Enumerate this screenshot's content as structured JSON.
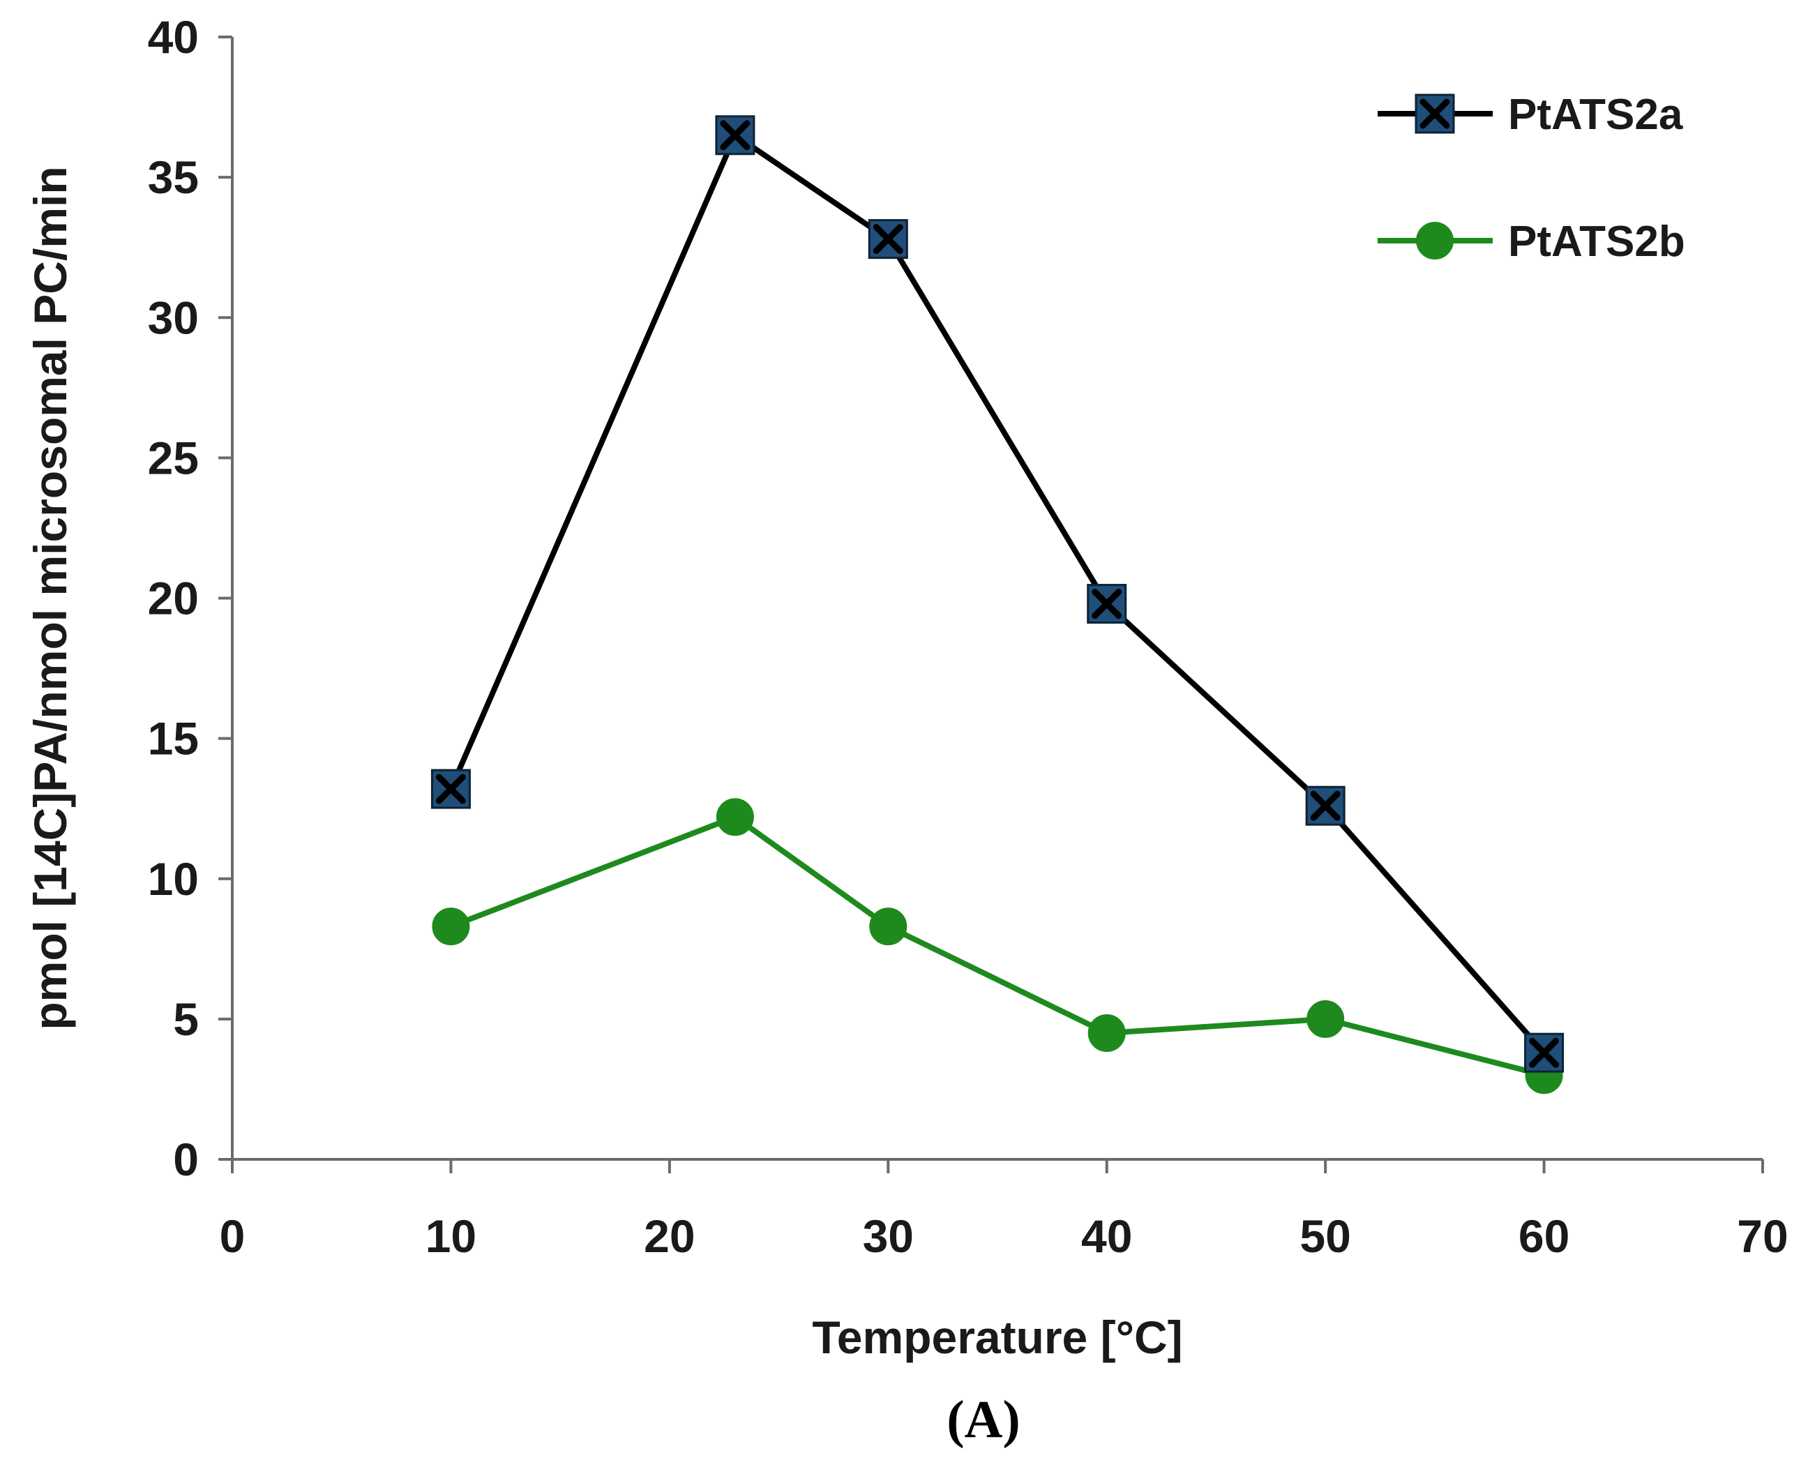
{
  "chart_data": {
    "type": "line",
    "title": "",
    "xlabel": "Temperature [°C]",
    "ylabel": "pmol [14C]PA/nmol microsomal PC/min",
    "xlim": [
      0,
      70
    ],
    "ylim": [
      0,
      40
    ],
    "xticks": [
      0,
      10,
      20,
      30,
      40,
      50,
      60,
      70
    ],
    "yticks": [
      0,
      5,
      10,
      15,
      20,
      25,
      30,
      35,
      40
    ],
    "grid": false,
    "legend_position": "top-right",
    "series": [
      {
        "name": "PtATS2a",
        "color": "#000000",
        "marker_color": "#1f4e79",
        "marker": "square-x",
        "x": [
          10,
          23,
          30,
          40,
          50,
          60
        ],
        "y": [
          13.2,
          36.5,
          32.8,
          19.8,
          12.6,
          3.8
        ]
      },
      {
        "name": "PtATS2b",
        "color": "#1e8a1e",
        "marker_color": "#1e8a1e",
        "marker": "circle",
        "x": [
          10,
          23,
          30,
          40,
          50,
          60
        ],
        "y": [
          8.3,
          12.2,
          8.3,
          4.5,
          5.0,
          3.0
        ]
      }
    ]
  },
  "panel_label": "(A)"
}
